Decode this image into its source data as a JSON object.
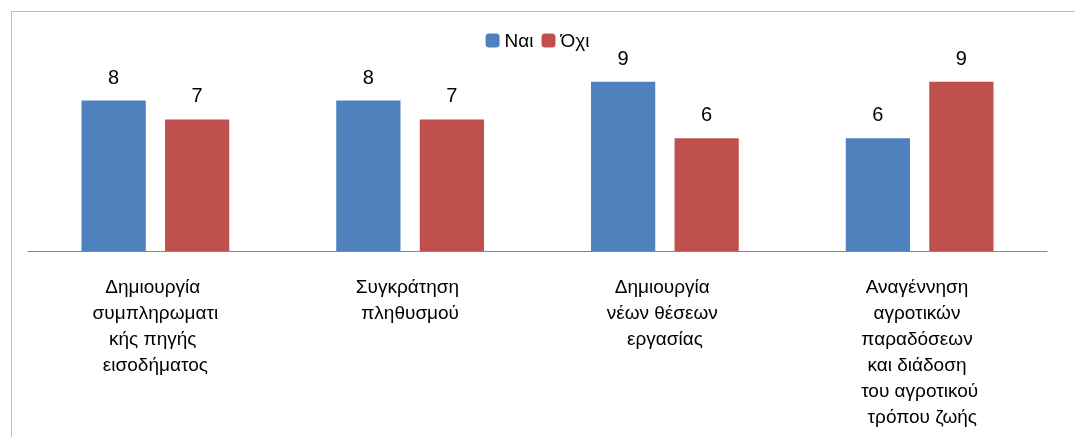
{
  "chart_data": {
    "type": "bar",
    "categories": [
      "Δημιουργία συμπληρωματικής πηγής εισοδήματος",
      "Συγκράτηση πληθυσμού",
      "Δημιουργία νέων θέσεων εργασίας",
      "Αναγέννηση αγροτικών παραδόσεων και διάδοση του αγροτικού τρόπου ζωής"
    ],
    "series": [
      {
        "name": "Ναι",
        "color": "#4f81bd",
        "values": [
          8,
          8,
          9,
          6
        ]
      },
      {
        "name": "Όχι",
        "color": "#c0504d",
        "values": [
          7,
          7,
          6,
          9
        ]
      }
    ],
    "data_labels": true,
    "legend": "top"
  }
}
